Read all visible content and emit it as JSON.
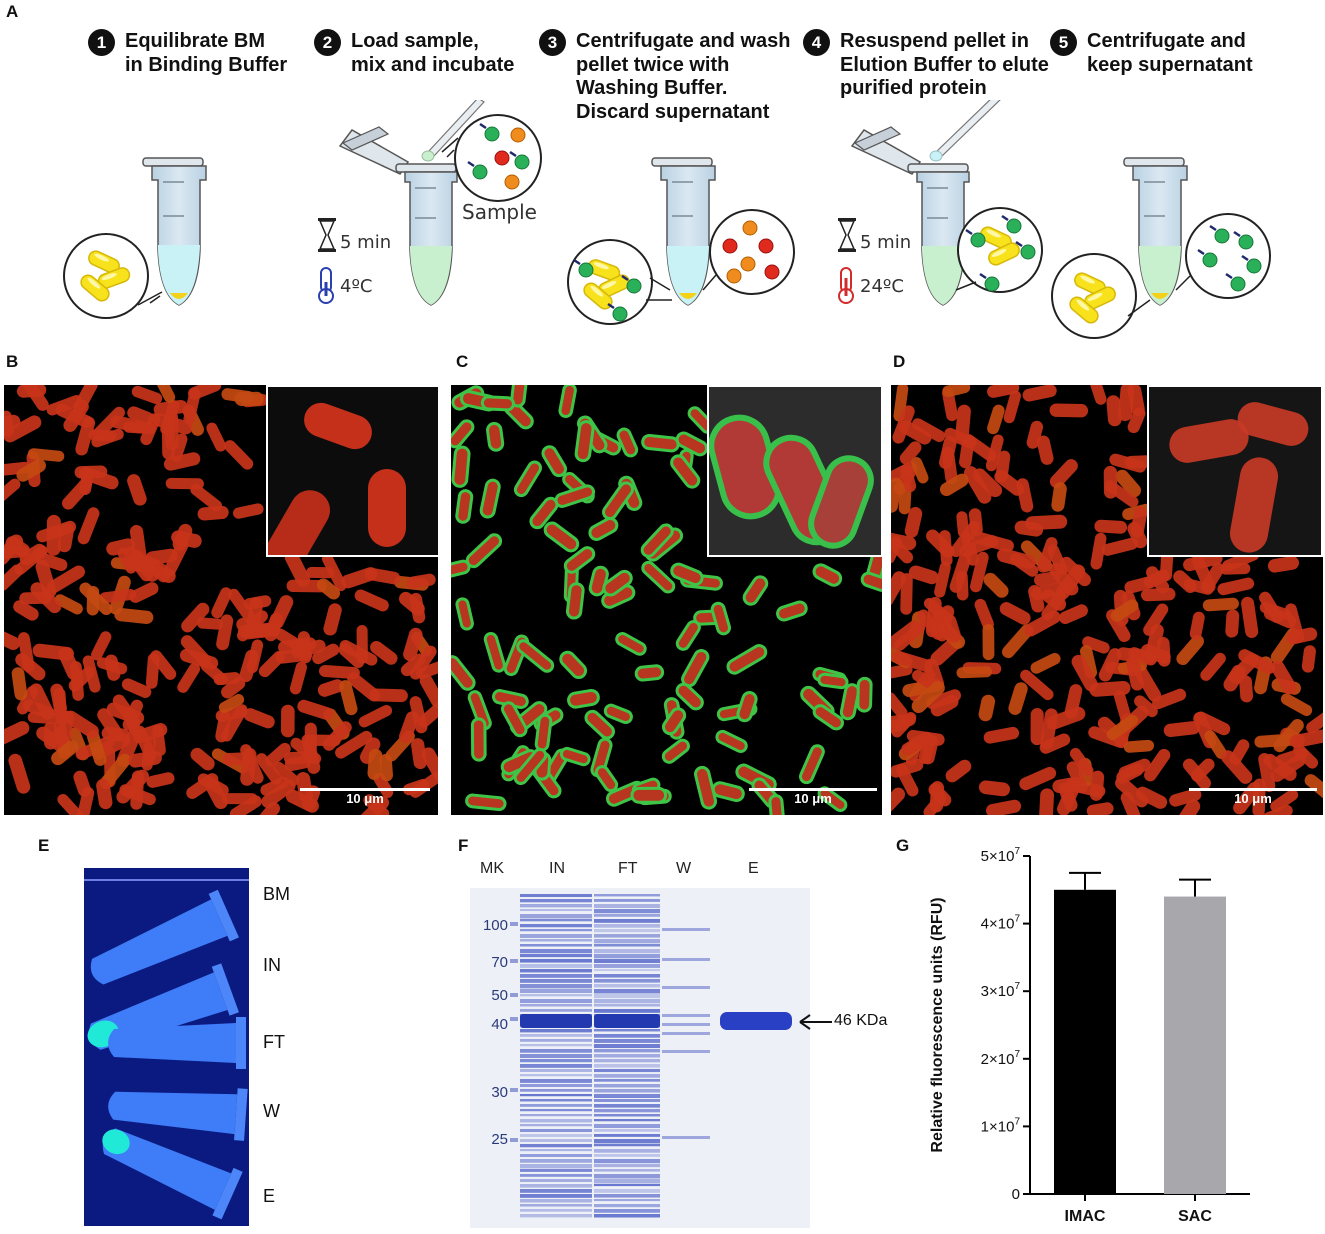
{
  "panels": {
    "a": "A",
    "b": "B",
    "c": "C",
    "d": "D",
    "e": "E",
    "f": "F",
    "g": "G"
  },
  "steps": [
    {
      "num": "1",
      "text": "Equilibrate BM\nin Binding Buffer"
    },
    {
      "num": "2",
      "text": "Load sample,\nmix and incubate"
    },
    {
      "num": "3",
      "text": "Centrifugate and wash\npellet twice with\nWashing Buffer.\nDiscard supernatant"
    },
    {
      "num": "4",
      "text": "Resuspend pellet in\nElution Buffer to elute\npurified protein"
    },
    {
      "num": "5",
      "text": "Centrifugate and\nkeep supernatant"
    }
  ],
  "conditions": {
    "sample_label": "Sample",
    "step2_time": "5 min",
    "step2_temp": "4ºC",
    "step4_time": "5 min",
    "step4_temp": "24ºC"
  },
  "colors": {
    "bead_yellow": "#f7e21c",
    "protein_green": "#2bb05a",
    "red_protein": "#e02a1e",
    "orange_protein": "#f08c1e",
    "tube_blue": "#cfe2ef",
    "gel_blue": "#2f47b5",
    "uv_blue": "#1d63e8",
    "bar_imac": "#000000",
    "bar_sac": "#a8a8ac"
  },
  "scalebars": {
    "b": "10 μm",
    "c": "10 μm",
    "d": "10 μm"
  },
  "tubes_e": [
    "BM",
    "IN",
    "FT",
    "W",
    "E"
  ],
  "gel": {
    "lanes": [
      "MK",
      "IN",
      "FT",
      "W",
      "E"
    ],
    "mw_markers": [
      "100",
      "70",
      "50",
      "40",
      "30",
      "25"
    ],
    "band_label": "46 KDa"
  },
  "chart_data": {
    "type": "bar",
    "categories": [
      "IMAC",
      "SAC"
    ],
    "values": [
      45000000,
      44000000
    ],
    "errors": [
      2500000,
      2500000
    ],
    "ylabel": "Relative fluorescence units (RFU)",
    "ylim": [
      0,
      50000000
    ],
    "yticks": [
      {
        "value": 0,
        "label": "0"
      },
      {
        "value": 10000000,
        "label": "1×10"
      },
      {
        "value": 20000000,
        "label": "2×10"
      },
      {
        "value": 30000000,
        "label": "3×10"
      },
      {
        "value": 40000000,
        "label": "4×10"
      },
      {
        "value": 50000000,
        "label": "5×10"
      }
    ],
    "tick_exponent": "7",
    "grid": false
  }
}
